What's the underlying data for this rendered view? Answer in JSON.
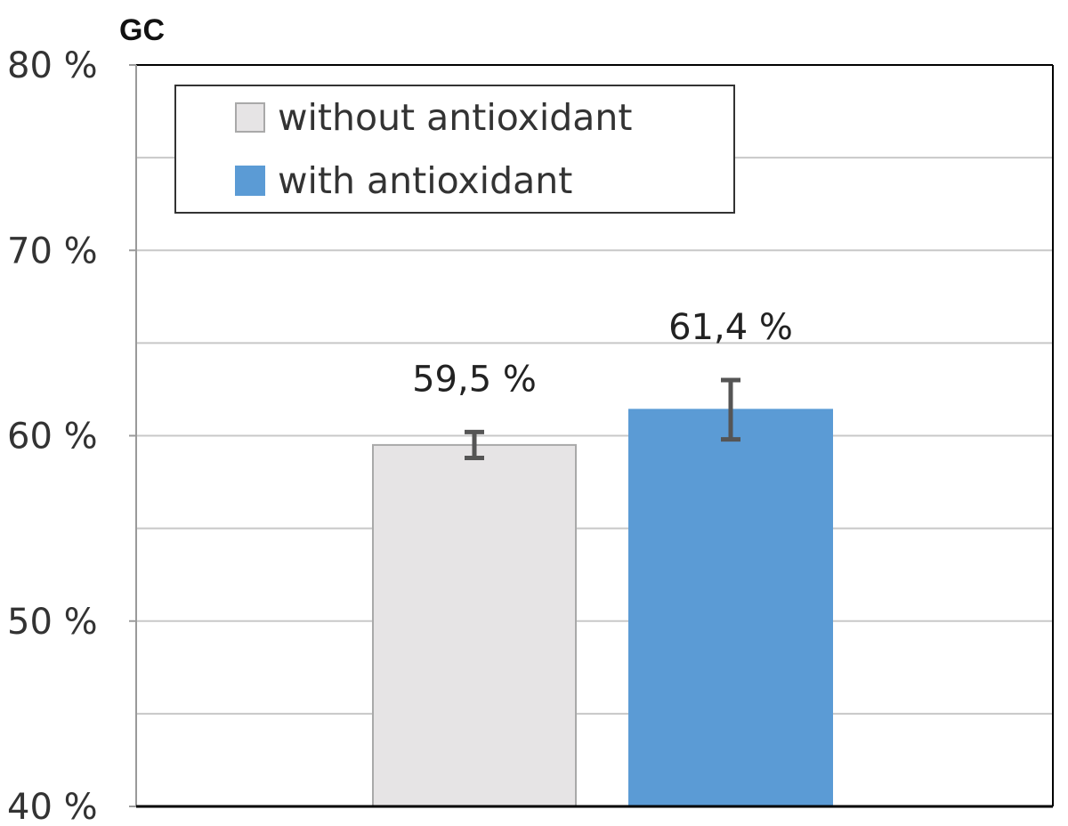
{
  "chart_data": {
    "type": "bar",
    "title": "GC",
    "xlabel": "",
    "ylabel": "",
    "ylim": [
      40,
      80
    ],
    "yticks": [
      40,
      50,
      60,
      70,
      80
    ],
    "ytick_labels": [
      "40 %",
      "50 %",
      "60 %",
      "70 %",
      "80 %"
    ],
    "grid": true,
    "minor_gridlines": [
      45,
      55,
      65,
      75
    ],
    "legend_position": "top-left",
    "series": [
      {
        "name": "without antioxidant",
        "value": 59.5,
        "error": 0.7,
        "label": "59,5 %",
        "color": "#e6e4e5",
        "stroke": "#a9a9a9"
      },
      {
        "name": "with antioxidant",
        "value": 61.4,
        "error": 1.6,
        "label": "61,4 %",
        "color": "#5b9bd5",
        "stroke": "#5b9bd5"
      }
    ],
    "colors": {
      "grid": "#c8c8c8",
      "frame": "#000000",
      "error_bar": "#555555"
    }
  }
}
